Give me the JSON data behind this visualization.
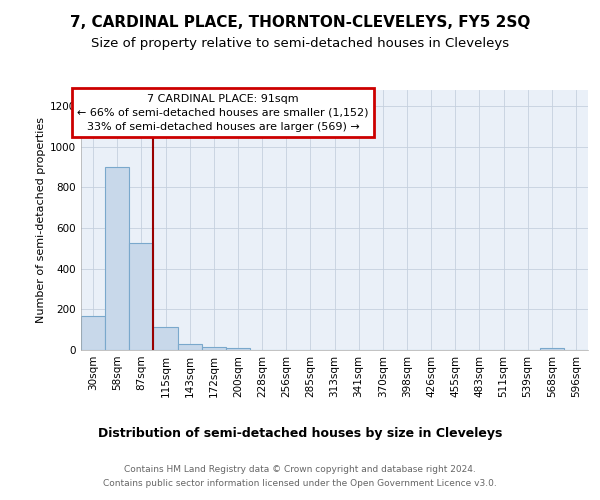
{
  "title": "7, CARDINAL PLACE, THORNTON-CLEVELEYS, FY5 2SQ",
  "subtitle": "Size of property relative to semi-detached houses in Cleveleys",
  "xlabel": "Distribution of semi-detached houses by size in Cleveleys",
  "ylabel": "Number of semi-detached properties",
  "categories": [
    "30sqm",
    "58sqm",
    "87sqm",
    "115sqm",
    "143sqm",
    "172sqm",
    "200sqm",
    "228sqm",
    "256sqm",
    "285sqm",
    "313sqm",
    "341sqm",
    "370sqm",
    "398sqm",
    "426sqm",
    "455sqm",
    "483sqm",
    "511sqm",
    "539sqm",
    "568sqm",
    "596sqm"
  ],
  "values": [
    165,
    900,
    525,
    115,
    30,
    15,
    10,
    0,
    0,
    0,
    0,
    0,
    0,
    0,
    0,
    0,
    0,
    0,
    0,
    10,
    0
  ],
  "bar_color": "#c8d8ea",
  "bar_edge_color": "#7aa8cc",
  "vline_x": 2.5,
  "vline_color": "#990000",
  "annotation_text": "7 CARDINAL PLACE: 91sqm\n← 66% of semi-detached houses are smaller (1,152)\n33% of semi-detached houses are larger (569) →",
  "annotation_box_color": "#ffffff",
  "annotation_box_edge_color": "#cc0000",
  "ylim": [
    0,
    1280
  ],
  "yticks": [
    0,
    200,
    400,
    600,
    800,
    1000,
    1200
  ],
  "footer_line1": "Contains HM Land Registry data © Crown copyright and database right 2024.",
  "footer_line2": "Contains public sector information licensed under the Open Government Licence v3.0.",
  "title_fontsize": 11,
  "subtitle_fontsize": 9.5,
  "tick_fontsize": 7.5,
  "ylabel_fontsize": 8,
  "xlabel_fontsize": 9,
  "footer_fontsize": 6.5,
  "annot_fontsize": 8
}
